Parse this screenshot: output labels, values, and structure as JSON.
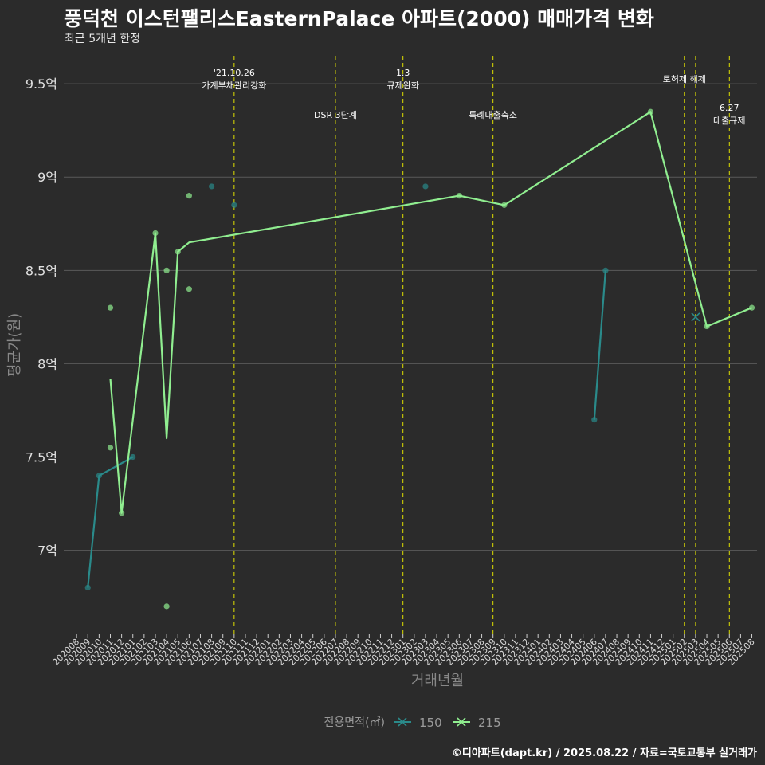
{
  "title": "풍덕천 이스턴팰리스EasternPalace 아파트(2000) 매매가격 변화",
  "subtitle": "최근 5개년 한정",
  "caption": "©디아파트(dapt.kr) / 2025.08.22 / 자료=국토교통부 실거래가",
  "colors": {
    "background": "#2b2b2b",
    "grid": "#5a5a5a",
    "series_150": "#2a8a8a",
    "series_215": "#90ee90",
    "event_line": "#e0e000"
  },
  "chart_data": {
    "type": "line",
    "xlabel": "거래년월",
    "ylabel": "평균가(원)",
    "x_categories": [
      "202008",
      "202009",
      "202010",
      "202011",
      "202012",
      "202101",
      "202102",
      "202103",
      "202104",
      "202105",
      "202106",
      "202107",
      "202108",
      "202109",
      "202110",
      "202111",
      "202112",
      "202201",
      "202202",
      "202203",
      "202204",
      "202205",
      "202206",
      "202207",
      "202208",
      "202209",
      "202210",
      "202211",
      "202212",
      "202301",
      "202302",
      "202303",
      "202304",
      "202305",
      "202306",
      "202307",
      "202308",
      "202309",
      "202310",
      "202311",
      "202312",
      "202401",
      "202402",
      "202403",
      "202404",
      "202405",
      "202406",
      "202407",
      "202408",
      "202409",
      "202410",
      "202411",
      "202412",
      "202501",
      "202502",
      "202503",
      "202504",
      "202505",
      "202506",
      "202507",
      "202508"
    ],
    "ylim": [
      6.55,
      9.65
    ],
    "yticks": [
      7.0,
      7.5,
      8.0,
      8.5,
      9.0,
      9.5
    ],
    "ytick_labels": [
      "7억",
      "7.5억",
      "8억",
      "8.5억",
      "9억",
      "9.5억"
    ],
    "legend": {
      "title": "전용면적(㎡)",
      "position": "bottom",
      "entries": [
        "150",
        "215"
      ]
    },
    "series": [
      {
        "name": "150",
        "color": "#2a8a8a",
        "line_segments": [
          [
            [
              "202009",
              6.8
            ],
            [
              "202010",
              7.4
            ],
            [
              "202101",
              7.5
            ]
          ],
          [
            [
              "202406",
              7.7
            ],
            [
              "202407",
              8.5
            ]
          ]
        ],
        "points": [
          [
            "202009",
            6.8
          ],
          [
            "202010",
            7.4
          ],
          [
            "202101",
            7.5
          ],
          [
            "202108",
            8.95
          ],
          [
            "202110",
            8.85
          ],
          [
            "202303",
            8.95
          ],
          [
            "202406",
            7.7
          ],
          [
            "202407",
            8.5
          ]
        ],
        "cross_points": [
          [
            "202503",
            8.25
          ]
        ]
      },
      {
        "name": "215",
        "color": "#90ee90",
        "line_segments": [
          [
            [
              "202011",
              7.92
            ],
            [
              "202012",
              7.2
            ],
            [
              "202103",
              8.7
            ],
            [
              "202104",
              7.6
            ],
            [
              "202105",
              8.6
            ],
            [
              "202106",
              8.65
            ],
            [
              "202306",
              8.9
            ],
            [
              "202310",
              8.85
            ],
            [
              "202411",
              9.35
            ],
            [
              "202504",
              8.2
            ],
            [
              "202508",
              8.3
            ]
          ]
        ],
        "points": [
          [
            "202011",
            8.3
          ],
          [
            "202011",
            7.55
          ],
          [
            "202012",
            7.2
          ],
          [
            "202103",
            8.7
          ],
          [
            "202104",
            8.5
          ],
          [
            "202104",
            6.7
          ],
          [
            "202105",
            8.6
          ],
          [
            "202106",
            8.9
          ],
          [
            "202106",
            8.4
          ],
          [
            "202306",
            8.9
          ],
          [
            "202310",
            8.85
          ],
          [
            "202411",
            9.35
          ],
          [
            "202504",
            8.2
          ],
          [
            "202508",
            8.3
          ]
        ],
        "cross_points": []
      }
    ],
    "annotations": [
      {
        "x": "202110",
        "text": "'21.10.26\n가계부채관리강화",
        "level": "high"
      },
      {
        "x": "202207",
        "text": "DSR 3단계",
        "level": "low"
      },
      {
        "x": "202301",
        "text": "1.3\n규제완화",
        "level": "high"
      },
      {
        "x": "202309",
        "text": "특례대출축소",
        "level": "low"
      },
      {
        "x": "202502",
        "text": "토허제 해제",
        "level": "mid"
      },
      {
        "x": "202503",
        "text": "",
        "level": "none"
      },
      {
        "x": "202506",
        "text": "6.27\n대출규제",
        "level": "low"
      }
    ]
  }
}
